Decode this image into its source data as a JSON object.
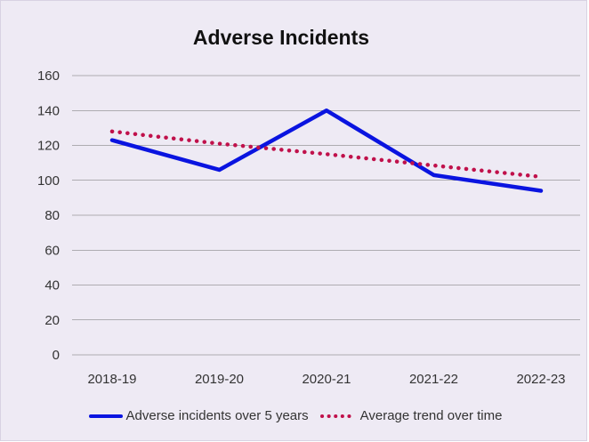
{
  "chart_data": {
    "type": "line",
    "title": "Adverse Incidents",
    "categories": [
      "2018-19",
      "2019-20",
      "2020-21",
      "2021-22",
      "2022-23"
    ],
    "ylim": [
      0,
      160
    ],
    "yticks": [
      "0",
      "20",
      "40",
      "60",
      "80",
      "100",
      "120",
      "140",
      "160"
    ],
    "grid": true,
    "legend_position": "bottom",
    "series": [
      {
        "name": "Adverse incidents over 5 years",
        "values": [
          123,
          106,
          140,
          103,
          94
        ],
        "color": "#0a14e0",
        "style": "solid"
      },
      {
        "name": "Average trend over time",
        "values": [
          128,
          121,
          115,
          108.5,
          102
        ],
        "color": "#c0114b",
        "style": "dotted"
      }
    ]
  }
}
